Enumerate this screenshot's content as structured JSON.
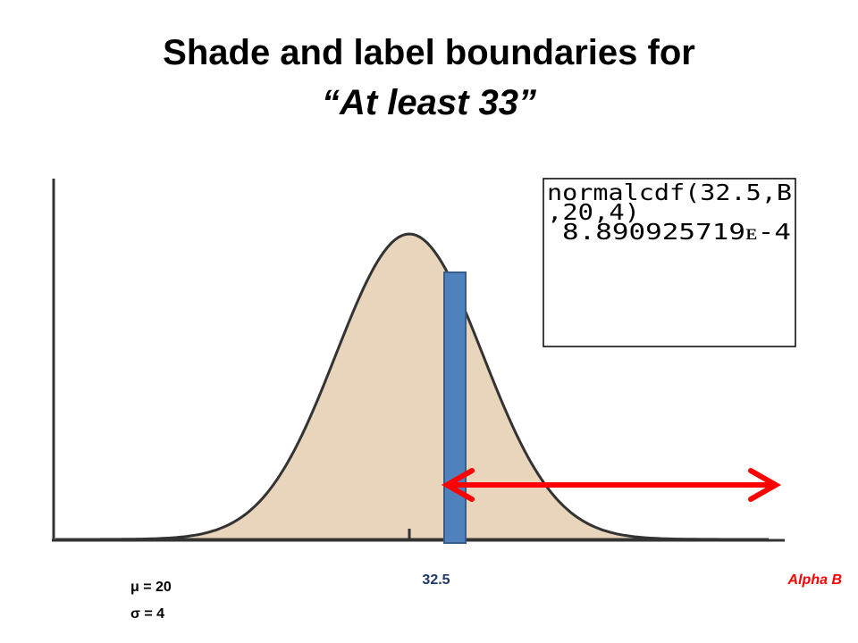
{
  "title": {
    "line1": "Shade and label boundaries for",
    "line2": "“At least 33”"
  },
  "calculator": {
    "lines": [
      "normalcdf(32.5,B",
      ",20,4)",
      "8.890925719ᴇ-4"
    ]
  },
  "labels": {
    "boundary": "32.5",
    "upper": "Alpha B",
    "mean": "μ = 20",
    "sd": "σ = 4"
  }
}
